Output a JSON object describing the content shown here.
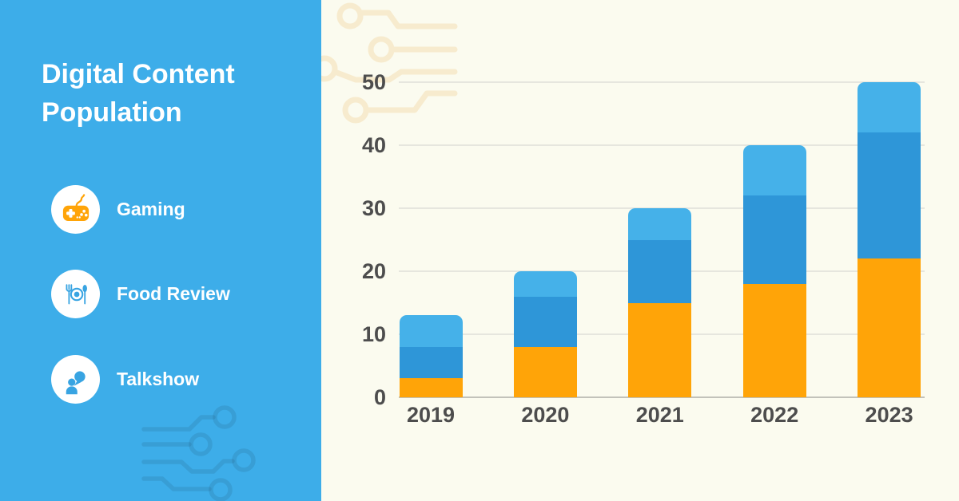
{
  "sidebar": {
    "title": "Digital Content Population",
    "background": "#3DADE9",
    "legend": [
      {
        "label": "Gaming",
        "icon": "gamepad-icon",
        "color": "#FFA408"
      },
      {
        "label": "Food Review",
        "icon": "food-plate-icon",
        "color": "#38A4E2"
      },
      {
        "label": "Talkshow",
        "icon": "speech-person-icon",
        "color": "#38A4E2"
      }
    ]
  },
  "chart_data": {
    "type": "bar",
    "stacked": true,
    "title": "Digital Content Population",
    "categories": [
      "2019",
      "2020",
      "2021",
      "2022",
      "2023"
    ],
    "series": [
      {
        "name": "Gaming",
        "color": "#FFA408",
        "values": [
          3,
          8,
          15,
          18,
          22
        ]
      },
      {
        "name": "Food Review",
        "color": "#2E96D8",
        "values": [
          5,
          8,
          10,
          14,
          20
        ]
      },
      {
        "name": "Talkshow",
        "color": "#45B1E9",
        "values": [
          5,
          4,
          5,
          8,
          8
        ]
      }
    ],
    "totals": [
      13,
      20,
      30,
      40,
      50
    ],
    "xlabel": "",
    "ylabel": "",
    "ylim": [
      0,
      50
    ],
    "y_ticks": [
      0,
      10,
      20,
      30,
      40,
      50
    ],
    "grid": true,
    "legend_position": "left-sidebar",
    "background": "#FBFBEF",
    "tick_color": "#4D4D4D"
  }
}
